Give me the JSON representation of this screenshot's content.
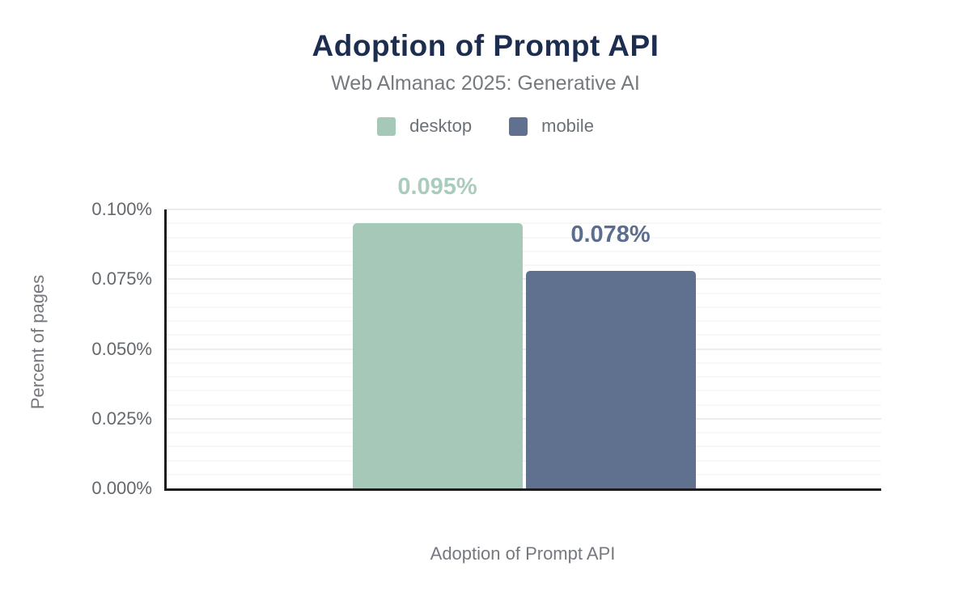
{
  "header": {
    "title": "Adoption of Prompt API",
    "subtitle": "Web Almanac 2025: Generative AI"
  },
  "legend": [
    {
      "label": "desktop",
      "color": "#a5c8b8"
    },
    {
      "label": "mobile",
      "color": "#60718f"
    }
  ],
  "chart_data": {
    "type": "bar",
    "title": "Adoption of Prompt API",
    "subtitle": "Web Almanac 2025: Generative AI",
    "categories": [
      "Adoption of Prompt API"
    ],
    "series": [
      {
        "name": "desktop",
        "value": 0.095,
        "label": "0.095%",
        "color": "#a5c8b8",
        "label_color": "#a9ccbc"
      },
      {
        "name": "mobile",
        "value": 0.078,
        "label": "0.078%",
        "color": "#60718f",
        "label_color": "#5c6e8f"
      }
    ],
    "xlabel": "Adoption of Prompt API",
    "ylabel": "Percent of pages",
    "ylim": [
      0,
      0.1
    ],
    "yticks": [
      {
        "value": 0.0,
        "label": "0.000%"
      },
      {
        "value": 0.025,
        "label": "0.025%"
      },
      {
        "value": 0.05,
        "label": "0.050%"
      },
      {
        "value": 0.075,
        "label": "0.075%"
      },
      {
        "value": 0.1,
        "label": "0.100%"
      }
    ],
    "minor_grid_step": 0.005,
    "grid": true,
    "legend_position": "top",
    "colors": {
      "title": "#1c2d4f",
      "subtitle": "#76797e",
      "tick_label": "#63686d",
      "axis_line": "#1c1c1c",
      "major_grid": "#ececec",
      "minor_grid": "#f7f7f7"
    }
  }
}
